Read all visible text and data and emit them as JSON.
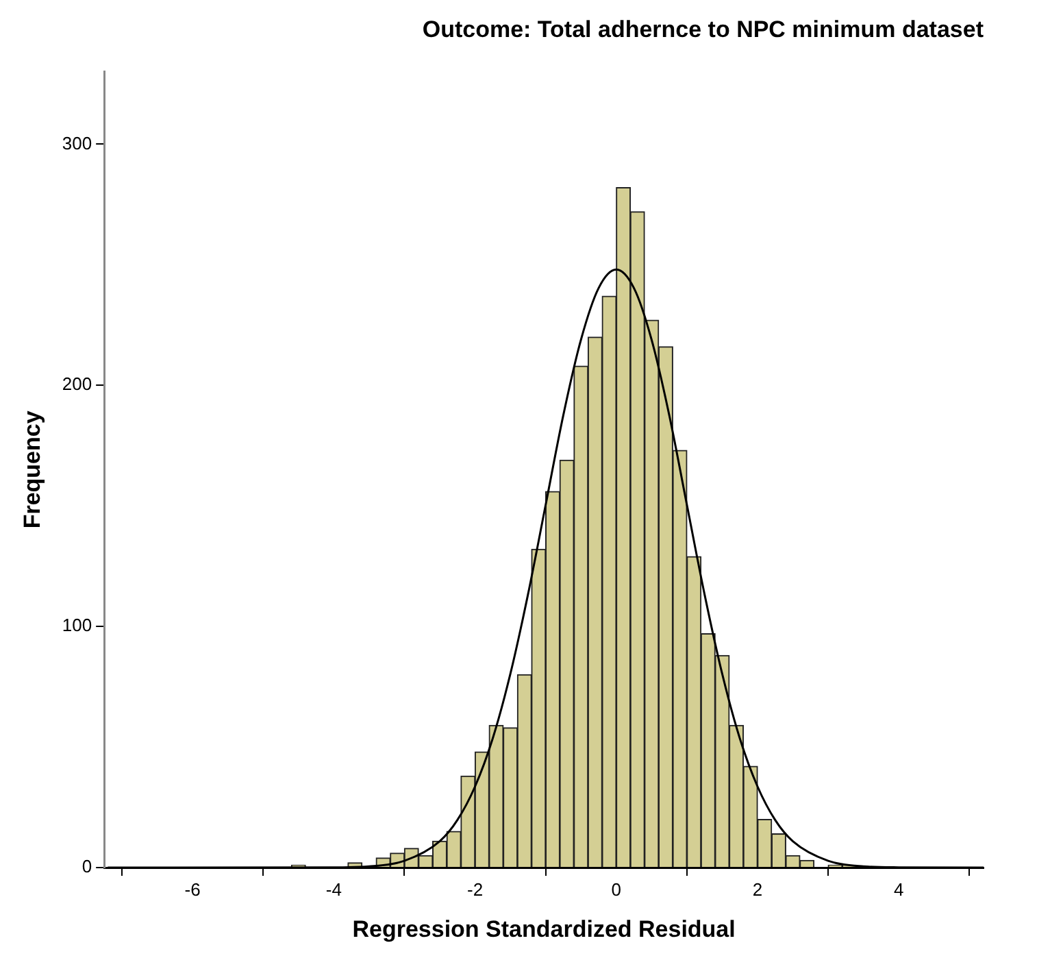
{
  "chart_data": {
    "type": "histogram",
    "title": "Outcome: Total adhernce to NPC minimum dataset",
    "xlabel": "Regression Standardized Residual",
    "ylabel": "Frequency",
    "bins": [
      -4.6,
      -4.4,
      -4.2,
      -4.0,
      -3.8,
      -3.6,
      -3.4,
      -3.2,
      -3.0,
      -2.8,
      -2.6,
      -2.4,
      -2.2,
      -2.0,
      -1.8,
      -1.6,
      -1.4,
      -1.2,
      -1.0,
      -0.8,
      -0.6,
      -0.4,
      -0.2,
      0,
      0.2,
      0.4,
      0.6,
      0.8,
      1.0,
      1.2,
      1.4,
      1.6,
      1.8,
      2.0,
      2.2,
      2.4,
      2.6,
      2.8,
      3.0,
      3.2,
      3.4
    ],
    "values": [
      1,
      0,
      0,
      0,
      2,
      0,
      4,
      6,
      8,
      5,
      11,
      15,
      38,
      48,
      59,
      58,
      80,
      132,
      156,
      169,
      208,
      220,
      237,
      282,
      272,
      227,
      216,
      173,
      129,
      97,
      88,
      59,
      42,
      20,
      14,
      5,
      3,
      0,
      1,
      1
    ],
    "color": "#d4cf94",
    "series": [
      {
        "type": "line",
        "color": "#000000",
        "x": [
          -7.2,
          -4,
          -3.5,
          -3,
          -2.5,
          -2.25,
          -2,
          -1.75,
          -1.5,
          -1.25,
          -1,
          -0.75,
          -0.5,
          -0.25,
          0,
          0.25,
          0.5,
          0.75,
          1,
          1.25,
          1.5,
          1.75,
          2,
          2.25,
          2.5,
          3,
          3.5,
          4,
          5.2
        ],
        "values": [
          0,
          0.1,
          0.5,
          2.8,
          10.9,
          19.7,
          33.6,
          53.5,
          80.3,
          113.3,
          150.4,
          187.6,
          218.9,
          240.3,
          248,
          240.3,
          218.9,
          187.6,
          150.4,
          113.3,
          80.3,
          53.5,
          33.6,
          19.7,
          10.9,
          2.8,
          0.5,
          0.1,
          0
        ]
      }
    ],
    "xlim": [
      -7.25,
      5.2
    ],
    "xticks": [
      -6,
      -4,
      -2,
      0,
      2,
      4
    ],
    "ylim": [
      0,
      330
    ],
    "yticks": [
      0,
      100,
      200,
      300
    ],
    "grid": false,
    "legend": false,
    "marker": "none"
  }
}
